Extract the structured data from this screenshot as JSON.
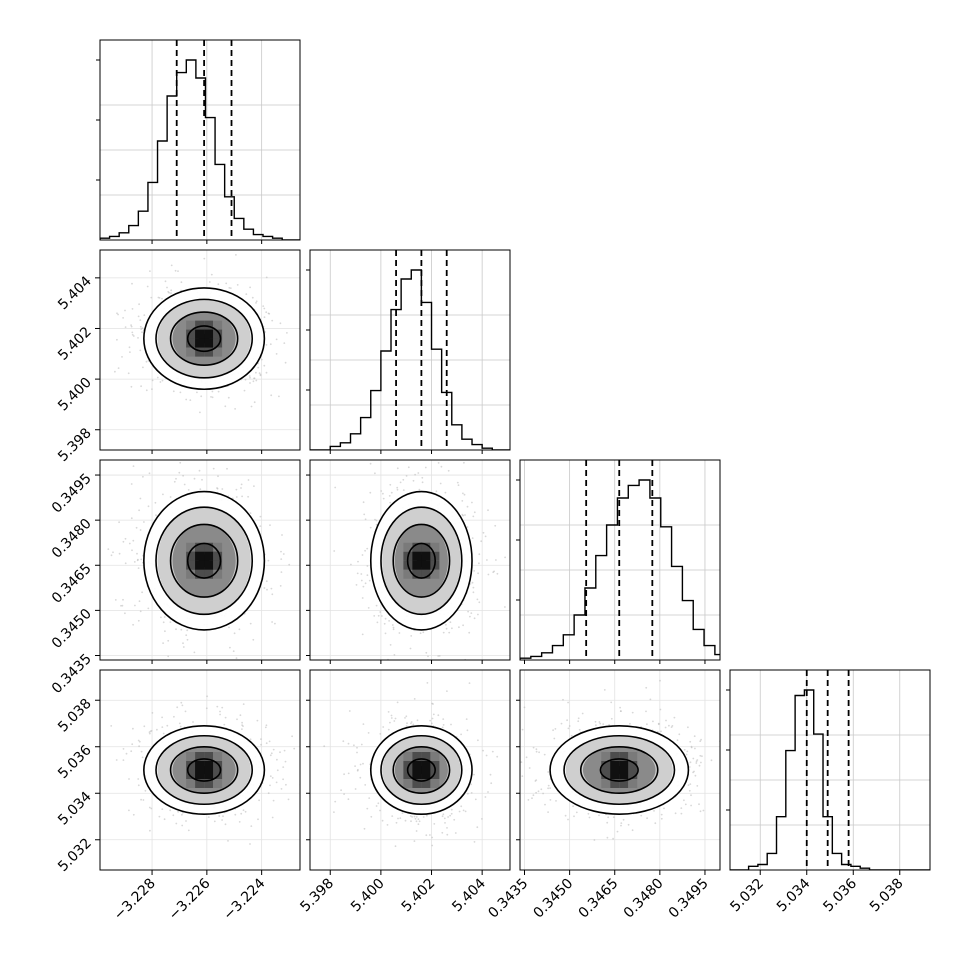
{
  "chart_data": {
    "type": "corner",
    "parameters": 4,
    "grid": true,
    "colors": {
      "line": "#000000",
      "density_dark": "#000000",
      "scatter": "#b8b8b8",
      "grid": "#c8c8c8"
    },
    "axes": [
      {
        "ticks": [
          -3.228,
          -3.226,
          -3.224
        ],
        "tick_labels": [
          "−3.228",
          "−3.226",
          "−3.224"
        ],
        "range": [
          -3.2299,
          -3.2226
        ]
      },
      {
        "ticks": [
          5.398,
          5.4,
          5.402,
          5.404
        ],
        "tick_labels": [
          "5.398",
          "5.400",
          "5.402",
          "5.404"
        ],
        "range": [
          5.3972,
          5.4051
        ]
      },
      {
        "ticks": [
          0.3435,
          0.345,
          0.3465,
          0.348,
          0.3495
        ],
        "tick_labels": [
          "0.3435",
          "0.3450",
          "0.3465",
          "0.3480",
          "0.3495"
        ],
        "range": [
          0.34335,
          0.35
        ]
      },
      {
        "ticks": [
          5.032,
          5.034,
          5.036,
          5.038
        ],
        "tick_labels": [
          "5.032",
          "5.034",
          "5.036",
          "5.038"
        ],
        "range": [
          5.0307,
          5.0393
        ]
      }
    ],
    "marginals": [
      {
        "quantiles": [
          -3.2271,
          -3.2261,
          -3.2251
        ],
        "bins_start": -3.2299,
        "bin_width": 0.00035,
        "counts": [
          1,
          2,
          4,
          8,
          16,
          32,
          55,
          80,
          93,
          100,
          90,
          68,
          42,
          24,
          12,
          6,
          3,
          2,
          1,
          0,
          0
        ]
      },
      {
        "quantiles": [
          5.4006,
          5.4016,
          5.4026
        ],
        "bins_start": 5.3972,
        "bin_width": 0.0004,
        "counts": [
          0,
          0,
          2,
          4,
          9,
          18,
          33,
          55,
          78,
          95,
          100,
          82,
          56,
          32,
          14,
          6,
          3,
          1,
          0,
          0
        ]
      },
      {
        "quantiles": [
          0.34555,
          0.34665,
          0.34775
        ],
        "bins_start": 0.34335,
        "bin_width": 0.00036,
        "counts": [
          1,
          2,
          4,
          8,
          14,
          25,
          40,
          58,
          75,
          90,
          97,
          100,
          90,
          74,
          52,
          33,
          17,
          8,
          3,
          1,
          0
        ]
      },
      {
        "quantiles": [
          5.034,
          5.0349,
          5.0358
        ],
        "bins_start": 5.0307,
        "bin_width": 0.0004,
        "counts": [
          0,
          0,
          2,
          3,
          9,
          29,
          65,
          95,
          98,
          74,
          29,
          9,
          3,
          2,
          1,
          0,
          0,
          0,
          0,
          0,
          0,
          0
        ]
      }
    ],
    "pairs": [
      {
        "row": 1,
        "col": 0,
        "center": [
          -3.2261,
          5.4016
        ],
        "spread": [
          0.0011,
          0.001
        ]
      },
      {
        "row": 2,
        "col": 0,
        "center": [
          -3.2261,
          0.34665
        ],
        "spread": [
          0.0011,
          0.00115
        ]
      },
      {
        "row": 2,
        "col": 1,
        "center": [
          5.4016,
          0.34665
        ],
        "spread": [
          0.001,
          0.00115
        ]
      },
      {
        "row": 3,
        "col": 0,
        "center": [
          -3.2261,
          5.035
        ],
        "spread": [
          0.0011,
          0.00095
        ]
      },
      {
        "row": 3,
        "col": 1,
        "center": [
          5.4016,
          5.035
        ],
        "spread": [
          0.001,
          0.00095
        ]
      },
      {
        "row": 3,
        "col": 2,
        "center": [
          0.34665,
          5.035
        ],
        "spread": [
          0.00115,
          0.00095
        ]
      }
    ]
  }
}
